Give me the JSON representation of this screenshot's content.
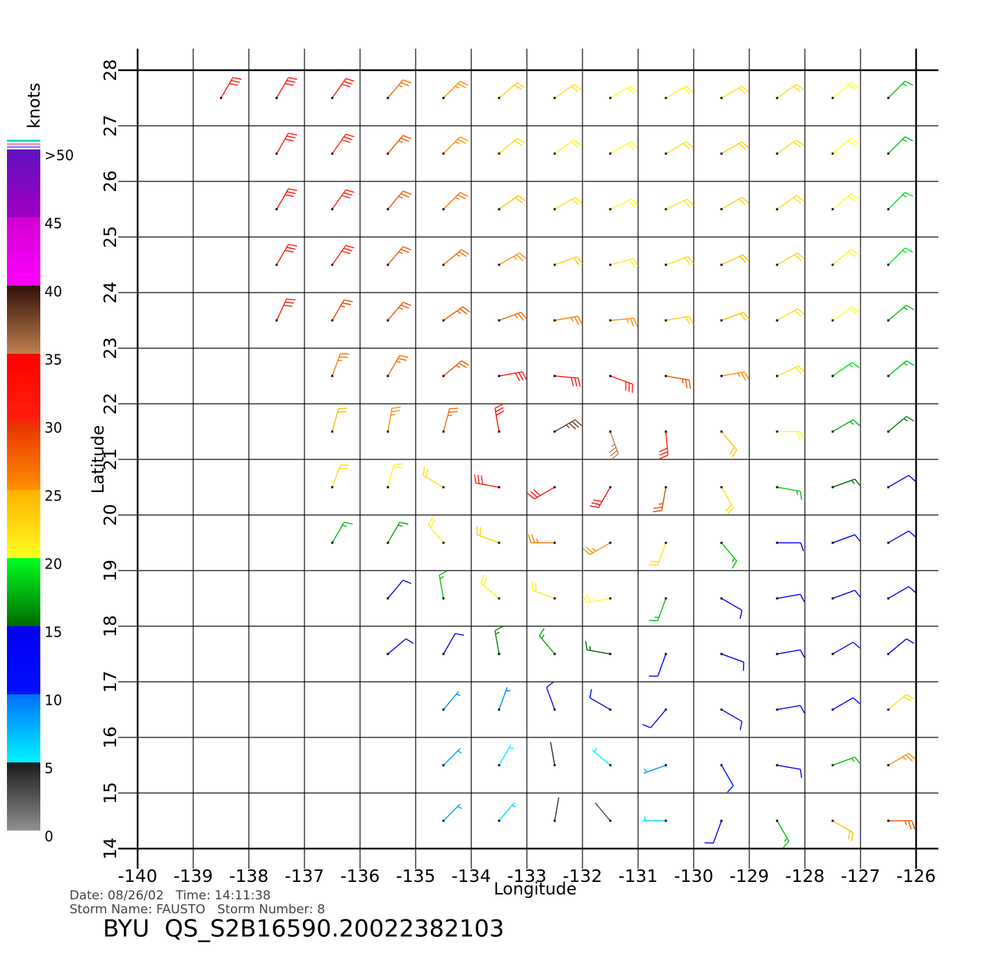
{
  "chart_data": {
    "type": "wind-barbs",
    "x_label": "Longitude",
    "y_label": "Latitude",
    "xlim": [
      -140,
      -126
    ],
    "ylim": [
      14,
      28
    ],
    "xticks": [
      -140,
      -139,
      -138,
      -137,
      -136,
      -135,
      -134,
      -133,
      -132,
      -131,
      -130,
      -129,
      -128,
      -127,
      -126
    ],
    "yticks": [
      14,
      15,
      16,
      17,
      18,
      19,
      20,
      21,
      22,
      23,
      24,
      25,
      26,
      27,
      28
    ],
    "grid": true,
    "lons": [
      -139.5,
      -138.5,
      -137.5,
      -136.5,
      -135.5,
      -134.5,
      -133.5,
      -132.5,
      -131.5,
      -130.5,
      -129.5,
      -128.5,
      -127.5,
      -126.5
    ],
    "lats": [
      27.5,
      26.5,
      25.5,
      24.5,
      23.5,
      22.5,
      21.5,
      20.5,
      19.5,
      18.5,
      17.5,
      16.5,
      15.5,
      14.5
    ],
    "speed": [
      [
        null,
        30,
        31,
        30,
        27,
        25,
        23,
        22,
        20,
        21,
        22,
        22,
        20,
        18
      ],
      [
        null,
        null,
        31,
        30,
        28,
        25,
        22,
        21,
        20,
        22,
        23,
        22,
        20,
        18
      ],
      [
        null,
        null,
        32,
        30,
        28,
        26,
        24,
        22,
        20,
        22,
        23,
        22,
        20,
        19
      ],
      [
        null,
        null,
        31,
        30,
        28,
        27,
        25,
        23,
        21,
        22,
        24,
        23,
        21,
        19
      ],
      [
        null,
        null,
        30,
        29,
        28,
        28,
        27,
        26,
        25,
        23,
        24,
        22,
        20,
        18
      ],
      [
        null,
        null,
        null,
        26,
        27,
        28,
        30,
        31,
        30,
        28,
        25,
        22,
        19,
        18
      ],
      [
        null,
        null,
        null,
        24,
        25,
        27,
        32,
        38,
        35,
        30,
        24,
        20,
        17,
        16
      ],
      [
        null,
        null,
        null,
        22,
        21,
        22,
        30,
        33,
        32,
        29,
        22,
        18,
        15,
        14
      ],
      [
        null,
        null,
        null,
        18,
        17,
        21,
        23,
        26,
        25,
        22,
        18,
        14,
        13,
        13
      ],
      [
        null,
        null,
        null,
        null,
        14,
        18,
        21,
        21,
        20,
        18,
        14,
        13,
        12,
        14
      ],
      [
        null,
        null,
        null,
        null,
        11,
        13,
        16,
        17,
        15,
        14,
        13,
        12,
        11,
        13
      ],
      [
        null,
        null,
        null,
        null,
        null,
        9,
        9,
        11,
        12,
        12,
        12,
        11,
        14,
        22
      ],
      [
        null,
        null,
        null,
        null,
        null,
        8,
        5,
        4,
        5,
        8,
        11,
        13,
        18,
        25
      ],
      [
        null,
        null,
        null,
        null,
        null,
        8,
        6,
        4,
        3,
        6,
        12,
        18,
        24,
        28
      ]
    ],
    "direction": [
      [
        null,
        30,
        30,
        35,
        40,
        45,
        50,
        55,
        60,
        60,
        60,
        55,
        50,
        45
      ],
      [
        null,
        null,
        30,
        35,
        40,
        45,
        50,
        55,
        60,
        60,
        60,
        55,
        50,
        45
      ],
      [
        null,
        null,
        30,
        35,
        40,
        45,
        55,
        60,
        65,
        65,
        60,
        55,
        50,
        45
      ],
      [
        null,
        null,
        30,
        35,
        40,
        50,
        60,
        70,
        75,
        70,
        65,
        60,
        50,
        45
      ],
      [
        null,
        null,
        25,
        30,
        40,
        55,
        70,
        80,
        85,
        80,
        70,
        60,
        55,
        50
      ],
      [
        null,
        null,
        null,
        20,
        30,
        50,
        80,
        95,
        110,
        100,
        80,
        65,
        55,
        50
      ],
      [
        null,
        null,
        null,
        15,
        10,
        15,
        350,
        60,
        160,
        175,
        140,
        90,
        60,
        50
      ],
      [
        null,
        null,
        null,
        20,
        15,
        300,
        280,
        240,
        210,
        190,
        150,
        100,
        70,
        60
      ],
      [
        null,
        null,
        null,
        30,
        30,
        320,
        290,
        270,
        240,
        200,
        140,
        90,
        70,
        60
      ],
      [
        null,
        null,
        null,
        null,
        40,
        350,
        310,
        290,
        260,
        200,
        120,
        80,
        70,
        60
      ],
      [
        null,
        null,
        null,
        null,
        50,
        30,
        350,
        320,
        280,
        200,
        110,
        80,
        60,
        50
      ],
      [
        null,
        null,
        null,
        null,
        null,
        40,
        20,
        340,
        300,
        220,
        120,
        80,
        60,
        50
      ],
      [
        null,
        null,
        null,
        null,
        null,
        45,
        30,
        350,
        310,
        250,
        150,
        100,
        70,
        60
      ],
      [
        null,
        null,
        null,
        null,
        null,
        45,
        40,
        10,
        320,
        270,
        200,
        150,
        120,
        90
      ]
    ],
    "colorbar": {
      "label": "knots",
      "ticks": [
        0,
        5,
        10,
        15,
        20,
        25,
        30,
        35,
        40,
        45,
        {
          "value": 50,
          "label": ">50"
        }
      ],
      "segments": [
        [
          "#909090",
          "#1a1a1a"
        ],
        [
          "#00f4ff",
          "#0070ff"
        ],
        [
          "#0010ff",
          "#0000ee"
        ],
        [
          "#006a00",
          "#00ff20"
        ],
        [
          "#ffff20",
          "#ffb000"
        ],
        [
          "#ff9000",
          "#e83000"
        ],
        [
          "#ff2010",
          "#ff0000"
        ],
        [
          "#c08050",
          "#301008"
        ],
        [
          "#ff00ff",
          "#d000d0"
        ],
        [
          "#a000c0",
          "#6010c0"
        ]
      ]
    },
    "footer": {
      "line1": "Date: 08/26/02   Time: 14:11:38",
      "line2": "Storm Name: FAUSTO   Storm Number: 8",
      "title": "BYU  QS_S2B16590.20022382103"
    }
  }
}
